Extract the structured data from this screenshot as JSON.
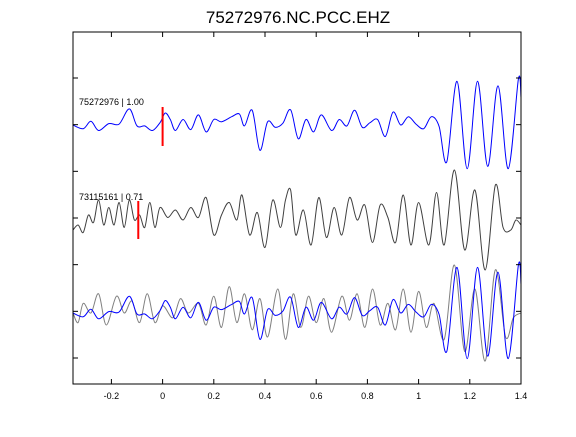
{
  "chart_data": {
    "type": "line",
    "title": "75272976.NC.PCC.EHZ",
    "xlim": [
      -0.35,
      1.4
    ],
    "x_ticks": [
      -0.2,
      0,
      0.2,
      0.4,
      0.6,
      0.8,
      1,
      1.2,
      1.4
    ],
    "x_tick_labels": [
      "-0.2",
      "0",
      "0.2",
      "0.4",
      "0.6",
      "0.8",
      "1",
      "1.2",
      "1.4"
    ],
    "y_ticks_unlabeled": 7,
    "grid": false,
    "colors": {
      "trace1": "#0000ff",
      "trace2": "#404040",
      "overlay_gray": "#808080",
      "pick": "#ff0000"
    },
    "traces": [
      {
        "label": "75272976 | 1.00",
        "color": "#0000ff",
        "pick_time": 0.0,
        "points": [
          [
            -0.35,
            0.0
          ],
          [
            -0.31,
            -0.08
          ],
          [
            -0.28,
            0.08
          ],
          [
            -0.25,
            -0.12
          ],
          [
            -0.21,
            0.03
          ],
          [
            -0.17,
            0.02
          ],
          [
            -0.13,
            0.35
          ],
          [
            -0.1,
            -0.02
          ],
          [
            -0.07,
            -0.02
          ],
          [
            -0.04,
            -0.12
          ],
          [
            -0.01,
            0.05
          ],
          [
            0.01,
            0.26
          ],
          [
            0.03,
            0.12
          ],
          [
            0.05,
            -0.12
          ],
          [
            0.08,
            0.12
          ],
          [
            0.11,
            -0.1
          ],
          [
            0.14,
            0.22
          ],
          [
            0.17,
            -0.15
          ],
          [
            0.2,
            0.12
          ],
          [
            0.23,
            0.07
          ],
          [
            0.27,
            0.18
          ],
          [
            0.3,
            0.24
          ],
          [
            0.32,
            -0.02
          ],
          [
            0.35,
            0.32
          ],
          [
            0.38,
            -0.55
          ],
          [
            0.41,
            0.07
          ],
          [
            0.44,
            -0.05
          ],
          [
            0.47,
            0.04
          ],
          [
            0.5,
            0.33
          ],
          [
            0.53,
            -0.3
          ],
          [
            0.56,
            0.12
          ],
          [
            0.59,
            -0.15
          ],
          [
            0.62,
            0.22
          ],
          [
            0.66,
            -0.12
          ],
          [
            0.69,
            0.12
          ],
          [
            0.72,
            -0.02
          ],
          [
            0.75,
            0.32
          ],
          [
            0.78,
            -0.05
          ],
          [
            0.81,
            0.05
          ],
          [
            0.84,
            0.12
          ],
          [
            0.87,
            -0.25
          ],
          [
            0.9,
            0.28
          ],
          [
            0.93,
            0.0
          ],
          [
            0.96,
            0.18
          ],
          [
            0.99,
            0.02
          ],
          [
            1.02,
            -0.08
          ],
          [
            1.05,
            0.18
          ],
          [
            1.08,
            -0.03
          ],
          [
            1.11,
            -0.8
          ],
          [
            1.15,
            0.95
          ],
          [
            1.19,
            -0.95
          ],
          [
            1.23,
            0.95
          ],
          [
            1.27,
            -0.9
          ],
          [
            1.31,
            0.85
          ],
          [
            1.35,
            -0.95
          ],
          [
            1.39,
            1.0
          ],
          [
            1.4,
            0.6
          ]
        ]
      },
      {
        "label": "73115161 | 0.71",
        "color": "#404040",
        "pick_time": -0.095,
        "points": [
          [
            -0.35,
            -0.2
          ],
          [
            -0.33,
            -0.1
          ],
          [
            -0.31,
            -0.25
          ],
          [
            -0.29,
            0.1
          ],
          [
            -0.27,
            -0.05
          ],
          [
            -0.25,
            0.4
          ],
          [
            -0.23,
            -0.1
          ],
          [
            -0.21,
            0.25
          ],
          [
            -0.19,
            -0.1
          ],
          [
            -0.17,
            0.35
          ],
          [
            -0.15,
            -0.15
          ],
          [
            -0.13,
            0.4
          ],
          [
            -0.11,
            0.0
          ],
          [
            -0.09,
            0.1
          ],
          [
            -0.07,
            -0.15
          ],
          [
            -0.05,
            0.35
          ],
          [
            -0.03,
            -0.15
          ],
          [
            -0.01,
            0.25
          ],
          [
            0.02,
            0.05
          ],
          [
            0.05,
            0.2
          ],
          [
            0.08,
            0.0
          ],
          [
            0.11,
            0.25
          ],
          [
            0.14,
            0.05
          ],
          [
            0.17,
            0.45
          ],
          [
            0.2,
            -0.3
          ],
          [
            0.23,
            0.1
          ],
          [
            0.26,
            0.35
          ],
          [
            0.29,
            0.0
          ],
          [
            0.31,
            0.5
          ],
          [
            0.34,
            -0.3
          ],
          [
            0.37,
            0.15
          ],
          [
            0.4,
            -0.55
          ],
          [
            0.43,
            0.4
          ],
          [
            0.46,
            -0.15
          ],
          [
            0.48,
            0.4
          ],
          [
            0.5,
            0.6
          ],
          [
            0.52,
            -0.3
          ],
          [
            0.55,
            0.2
          ],
          [
            0.58,
            -0.5
          ],
          [
            0.61,
            0.45
          ],
          [
            0.64,
            -0.35
          ],
          [
            0.67,
            0.25
          ],
          [
            0.7,
            -0.3
          ],
          [
            0.73,
            0.45
          ],
          [
            0.76,
            0.0
          ],
          [
            0.79,
            0.3
          ],
          [
            0.82,
            -0.45
          ],
          [
            0.85,
            0.3
          ],
          [
            0.88,
            0.05
          ],
          [
            0.91,
            -0.45
          ],
          [
            0.94,
            0.5
          ],
          [
            0.97,
            -0.5
          ],
          [
            1.0,
            0.35
          ],
          [
            1.04,
            -0.5
          ],
          [
            1.07,
            0.55
          ],
          [
            1.1,
            -0.5
          ],
          [
            1.14,
            1.0
          ],
          [
            1.18,
            -0.6
          ],
          [
            1.22,
            0.6
          ],
          [
            1.26,
            -1.0
          ],
          [
            1.3,
            0.7
          ],
          [
            1.33,
            -0.15
          ],
          [
            1.36,
            -0.2
          ],
          [
            1.38,
            0.0
          ],
          [
            1.4,
            -0.1
          ]
        ]
      },
      {
        "label": "",
        "color": "#808080",
        "points": [
          [
            -0.35,
            0.0
          ],
          [
            -0.33,
            -0.2
          ],
          [
            -0.31,
            0.2
          ],
          [
            -0.28,
            0.0
          ],
          [
            -0.25,
            0.4
          ],
          [
            -0.22,
            -0.25
          ],
          [
            -0.18,
            0.35
          ],
          [
            -0.15,
            0.0
          ],
          [
            -0.12,
            0.25
          ],
          [
            -0.09,
            -0.2
          ],
          [
            -0.06,
            0.4
          ],
          [
            -0.03,
            -0.2
          ],
          [
            0.0,
            0.15
          ],
          [
            0.04,
            -0.1
          ],
          [
            0.07,
            0.3
          ],
          [
            0.1,
            0.0
          ],
          [
            0.14,
            0.2
          ],
          [
            0.17,
            -0.25
          ],
          [
            0.2,
            0.35
          ],
          [
            0.23,
            -0.3
          ],
          [
            0.26,
            0.55
          ],
          [
            0.29,
            -0.2
          ],
          [
            0.32,
            0.4
          ],
          [
            0.35,
            -0.35
          ],
          [
            0.38,
            0.3
          ],
          [
            0.41,
            -0.5
          ],
          [
            0.45,
            0.5
          ],
          [
            0.48,
            -0.55
          ],
          [
            0.51,
            0.4
          ],
          [
            0.54,
            -0.3
          ],
          [
            0.57,
            0.35
          ],
          [
            0.6,
            -0.2
          ],
          [
            0.63,
            0.3
          ],
          [
            0.66,
            -0.4
          ],
          [
            0.7,
            0.35
          ],
          [
            0.73,
            -0.15
          ],
          [
            0.76,
            0.4
          ],
          [
            0.79,
            -0.3
          ],
          [
            0.82,
            0.5
          ],
          [
            0.85,
            -0.25
          ],
          [
            0.88,
            0.2
          ],
          [
            0.91,
            -0.35
          ],
          [
            0.94,
            0.5
          ],
          [
            0.97,
            -0.4
          ],
          [
            1.0,
            0.45
          ],
          [
            1.03,
            -0.3
          ],
          [
            1.06,
            0.2
          ],
          [
            1.1,
            -0.55
          ],
          [
            1.14,
            1.0
          ],
          [
            1.18,
            -0.8
          ],
          [
            1.22,
            0.5
          ],
          [
            1.26,
            -1.0
          ],
          [
            1.3,
            0.9
          ],
          [
            1.34,
            -0.5
          ],
          [
            1.37,
            -0.1
          ],
          [
            1.4,
            0.0
          ]
        ]
      },
      {
        "label": "",
        "color": "#0000ff",
        "points": [
          [
            -0.35,
            0.0
          ],
          [
            -0.31,
            -0.08
          ],
          [
            -0.28,
            0.08
          ],
          [
            -0.25,
            -0.12
          ],
          [
            -0.21,
            0.03
          ],
          [
            -0.17,
            0.02
          ],
          [
            -0.13,
            0.35
          ],
          [
            -0.1,
            -0.02
          ],
          [
            -0.07,
            -0.02
          ],
          [
            -0.04,
            -0.12
          ],
          [
            -0.01,
            0.05
          ],
          [
            0.01,
            0.26
          ],
          [
            0.03,
            0.12
          ],
          [
            0.05,
            -0.12
          ],
          [
            0.08,
            0.12
          ],
          [
            0.11,
            -0.1
          ],
          [
            0.14,
            0.22
          ],
          [
            0.17,
            -0.15
          ],
          [
            0.2,
            0.12
          ],
          [
            0.23,
            0.07
          ],
          [
            0.27,
            0.18
          ],
          [
            0.3,
            0.24
          ],
          [
            0.32,
            -0.02
          ],
          [
            0.35,
            0.32
          ],
          [
            0.38,
            -0.55
          ],
          [
            0.41,
            0.07
          ],
          [
            0.44,
            -0.05
          ],
          [
            0.47,
            0.04
          ],
          [
            0.5,
            0.33
          ],
          [
            0.53,
            -0.3
          ],
          [
            0.56,
            0.12
          ],
          [
            0.59,
            -0.15
          ],
          [
            0.62,
            0.22
          ],
          [
            0.66,
            -0.12
          ],
          [
            0.69,
            0.12
          ],
          [
            0.72,
            -0.02
          ],
          [
            0.75,
            0.32
          ],
          [
            0.78,
            -0.05
          ],
          [
            0.81,
            0.05
          ],
          [
            0.84,
            0.12
          ],
          [
            0.87,
            -0.25
          ],
          [
            0.9,
            0.28
          ],
          [
            0.93,
            0.0
          ],
          [
            0.96,
            0.18
          ],
          [
            0.99,
            0.02
          ],
          [
            1.02,
            -0.08
          ],
          [
            1.05,
            0.18
          ],
          [
            1.08,
            -0.03
          ],
          [
            1.11,
            -0.8
          ],
          [
            1.15,
            0.95
          ],
          [
            1.19,
            -0.95
          ],
          [
            1.23,
            0.95
          ],
          [
            1.27,
            -0.9
          ],
          [
            1.31,
            0.85
          ],
          [
            1.35,
            -0.95
          ],
          [
            1.39,
            1.0
          ],
          [
            1.4,
            0.6
          ]
        ]
      }
    ]
  }
}
